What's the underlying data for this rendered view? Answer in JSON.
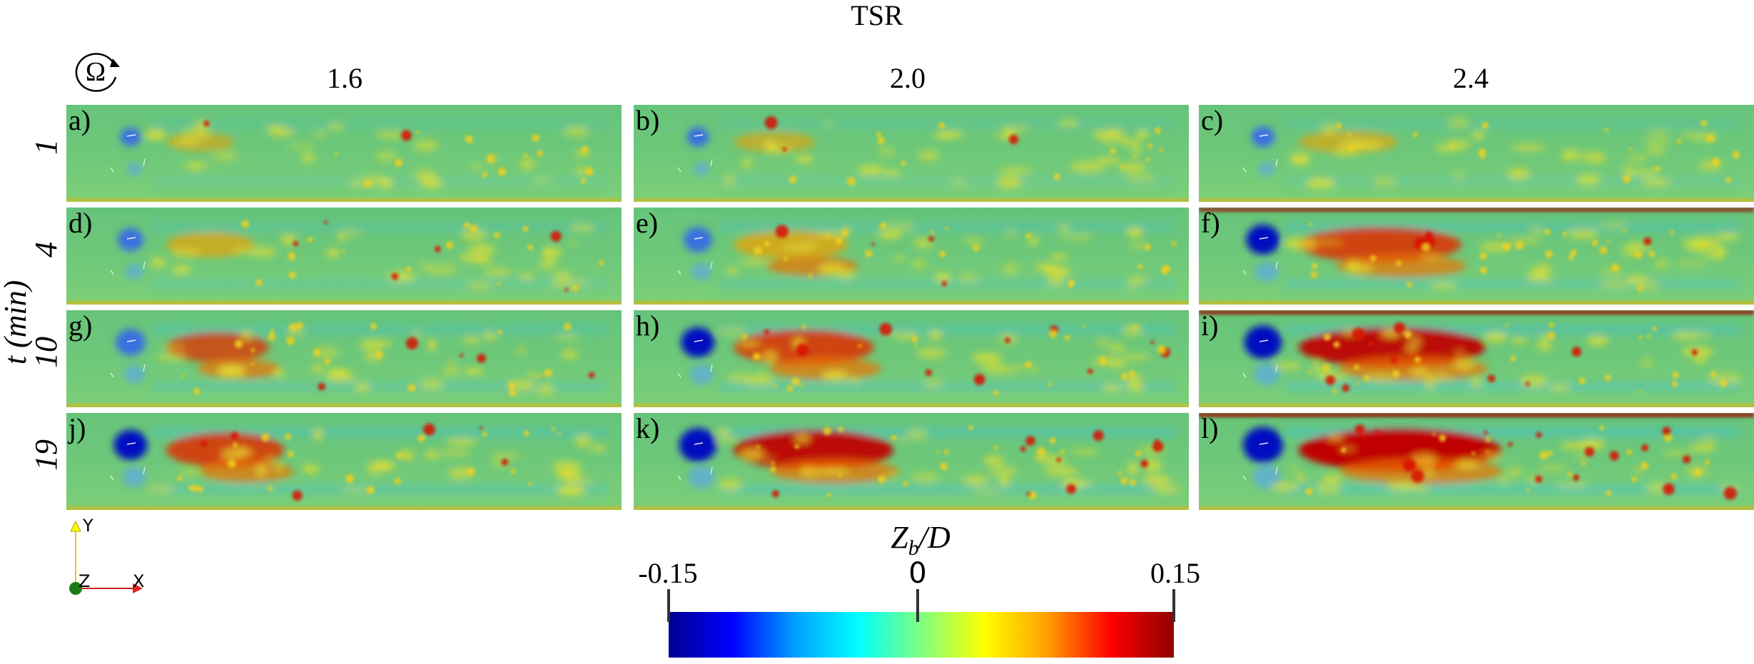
{
  "figure": {
    "column_group_title": "TSR",
    "rotation_symbol": "Ω",
    "time_axis_label_var": "t",
    "time_axis_label_unit": "(min)",
    "columns": [
      "1.6",
      "2.0",
      "2.4"
    ],
    "rows": [
      "1",
      "4",
      "10",
      "19"
    ],
    "panels": [
      {
        "label": "a)",
        "tsr": 1.6,
        "t_min": 1,
        "intensity": 0.25
      },
      {
        "label": "b)",
        "tsr": 2.0,
        "t_min": 1,
        "intensity": 0.3
      },
      {
        "label": "c)",
        "tsr": 2.4,
        "t_min": 1,
        "intensity": 0.35
      },
      {
        "label": "d)",
        "tsr": 1.6,
        "t_min": 4,
        "intensity": 0.45
      },
      {
        "label": "e)",
        "tsr": 2.0,
        "t_min": 4,
        "intensity": 0.55
      },
      {
        "label": "f)",
        "tsr": 2.4,
        "t_min": 4,
        "intensity": 0.75
      },
      {
        "label": "g)",
        "tsr": 1.6,
        "t_min": 10,
        "intensity": 0.6
      },
      {
        "label": "h)",
        "tsr": 2.0,
        "t_min": 10,
        "intensity": 0.75
      },
      {
        "label": "i)",
        "tsr": 2.4,
        "t_min": 10,
        "intensity": 0.9
      },
      {
        "label": "j)",
        "tsr": 1.6,
        "t_min": 19,
        "intensity": 0.75
      },
      {
        "label": "k)",
        "tsr": 2.0,
        "t_min": 19,
        "intensity": 0.9
      },
      {
        "label": "l)",
        "tsr": 2.4,
        "t_min": 19,
        "intensity": 1.0
      }
    ],
    "triad": {
      "y": "Y",
      "z": "Z",
      "x": "X"
    },
    "colorbar": {
      "title_var": "Z",
      "title_sub": "b",
      "title_rest": "/D",
      "min_label": "-0.15",
      "mid_label": "0",
      "max_label": "0.15",
      "range": [
        -0.15,
        0.15
      ],
      "colormap": [
        "#00008f",
        "#0000ff",
        "#00a0ff",
        "#00ffff",
        "#7fff7f",
        "#ffff00",
        "#ff9f00",
        "#ff0000",
        "#8f0000"
      ]
    }
  }
}
